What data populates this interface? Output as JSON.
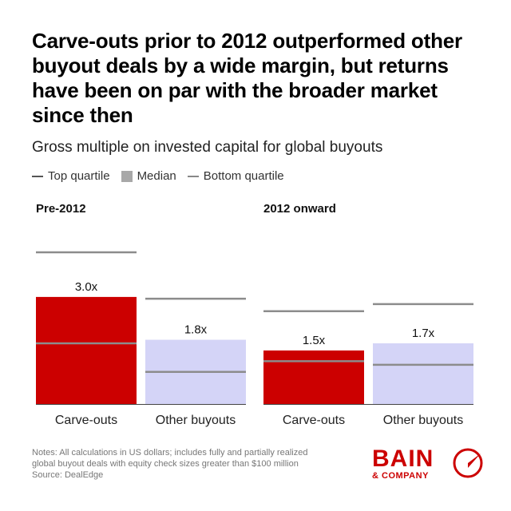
{
  "title": "Carve-outs prior to 2012 outperformed other buyout deals by a wide margin, but returns have been on par with the broader market since then",
  "subtitle": "Gross multiple on invested capital for global buyouts",
  "legend": {
    "top": "Top quartile",
    "median": "Median",
    "bottom": "Bottom quartile"
  },
  "notes": [
    "Notes: All calculations in US dollars; includes fully and partially realized",
    "global buyout deals with equity check sizes greater than $100 million",
    "Source: DealEdge"
  ],
  "logo": {
    "main": "BAIN",
    "sub": "& COMPANY"
  },
  "colors": {
    "carve": "#cc0000",
    "other": "#d4d4f7",
    "quartile": "#8c8c8c",
    "axis": "#444444"
  },
  "chart_data": [
    {
      "type": "bar",
      "title": "Pre-2012",
      "categories": [
        "Carve-outs",
        "Other buyouts"
      ],
      "series": [
        {
          "name": "Median",
          "values": [
            3.0,
            1.8
          ],
          "labels": [
            "3.0x",
            "1.8x"
          ]
        },
        {
          "name": "Top quartile",
          "values": [
            4.25,
            2.95
          ]
        },
        {
          "name": "Bottom quartile",
          "values": [
            1.7,
            0.9
          ]
        }
      ],
      "ylim": [
        0,
        5
      ]
    },
    {
      "type": "bar",
      "title": "2012 onward",
      "categories": [
        "Carve-outs",
        "Other buyouts"
      ],
      "series": [
        {
          "name": "Median",
          "values": [
            1.5,
            1.7
          ],
          "labels": [
            "1.5x",
            "1.7x"
          ]
        },
        {
          "name": "Top quartile",
          "values": [
            2.6,
            2.8
          ]
        },
        {
          "name": "Bottom quartile",
          "values": [
            1.2,
            1.1
          ]
        }
      ],
      "ylim": [
        0,
        5
      ]
    }
  ]
}
